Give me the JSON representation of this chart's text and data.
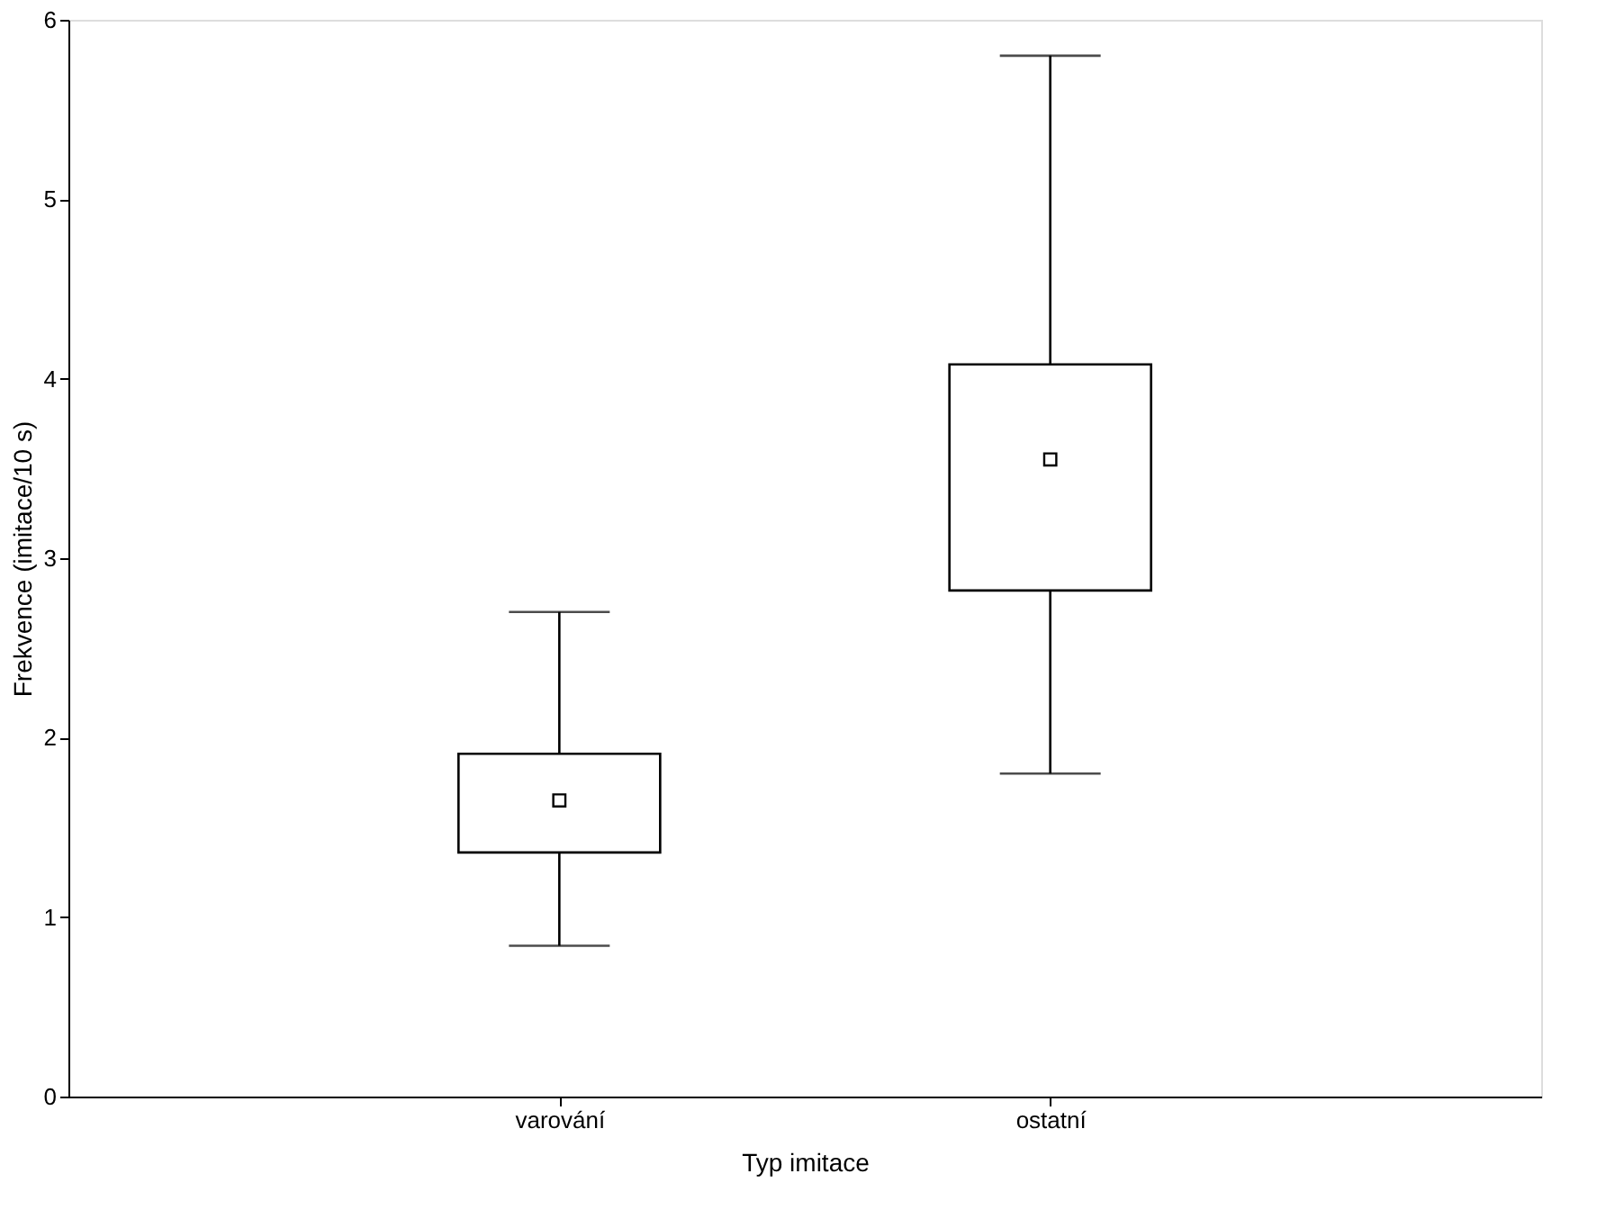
{
  "chart_data": {
    "type": "box",
    "xlabel": "Typ imitace",
    "ylabel": "Frekvence (imitace/10 s)",
    "categories": [
      "varování",
      "ostatní"
    ],
    "boxes": [
      {
        "low": 0.84,
        "q1": 1.36,
        "median": 1.65,
        "q3": 1.91,
        "high": 2.7
      },
      {
        "low": 1.8,
        "q1": 2.82,
        "median": 3.55,
        "q3": 4.08,
        "high": 5.8
      }
    ],
    "ylim": [
      0,
      6
    ],
    "yticks": [
      0,
      1,
      2,
      3,
      4,
      5,
      6
    ],
    "grid": false,
    "color": "#000000"
  }
}
